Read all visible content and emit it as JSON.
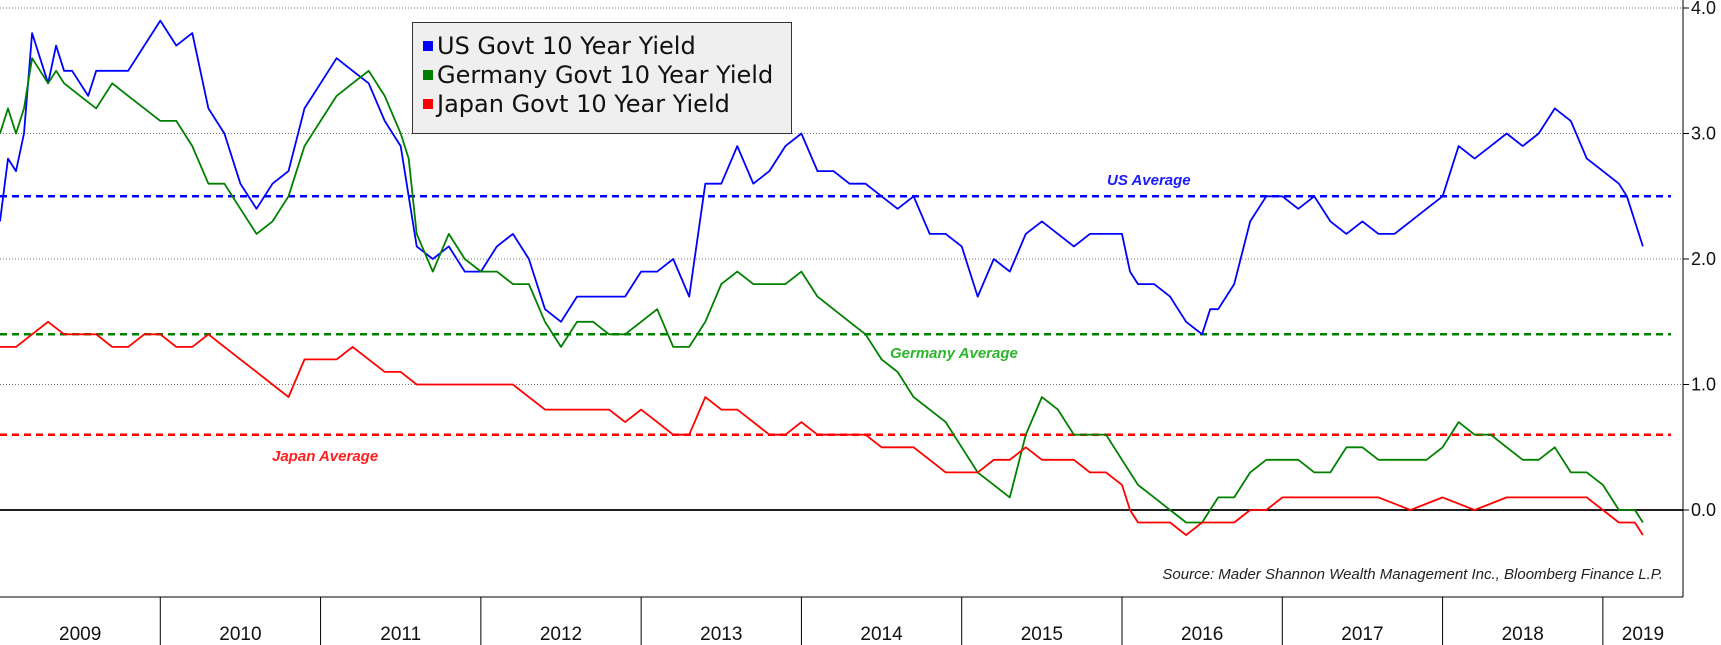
{
  "chart_data": {
    "type": "line",
    "ylim": [
      -0.7,
      4.0
    ],
    "y_ticks": [
      "4.0",
      "3.0",
      "2.0",
      "1.0",
      "0.0"
    ],
    "x_tick_labels": [
      "2009",
      "2010",
      "2011",
      "2012",
      "2013",
      "2014",
      "2015",
      "2016",
      "2017",
      "2018",
      "2019"
    ],
    "grid": true,
    "legend_position": "top-center",
    "series": [
      {
        "name": "US Govt 10 Year Yield",
        "color": "#0000ff",
        "x": [
          2009.0,
          2009.05,
          2009.1,
          2009.15,
          2009.2,
          2009.3,
          2009.35,
          2009.4,
          2009.45,
          2009.55,
          2009.6,
          2009.7,
          2009.8,
          2009.9,
          2010.0,
          2010.1,
          2010.2,
          2010.3,
          2010.4,
          2010.5,
          2010.6,
          2010.7,
          2010.8,
          2010.9,
          2011.0,
          2011.1,
          2011.2,
          2011.3,
          2011.4,
          2011.5,
          2011.55,
          2011.6,
          2011.7,
          2011.8,
          2011.9,
          2012.0,
          2012.1,
          2012.2,
          2012.3,
          2012.4,
          2012.5,
          2012.6,
          2012.7,
          2012.8,
          2012.9,
          2013.0,
          2013.1,
          2013.2,
          2013.3,
          2013.4,
          2013.5,
          2013.6,
          2013.7,
          2013.8,
          2013.9,
          2014.0,
          2014.1,
          2014.2,
          2014.3,
          2014.4,
          2014.5,
          2014.6,
          2014.7,
          2014.8,
          2014.9,
          2015.0,
          2015.1,
          2015.2,
          2015.3,
          2015.4,
          2015.5,
          2015.6,
          2015.7,
          2015.8,
          2015.9,
          2016.0,
          2016.05,
          2016.1,
          2016.2,
          2016.3,
          2016.4,
          2016.5,
          2016.55,
          2016.6,
          2016.7,
          2016.8,
          2016.9,
          2017.0,
          2017.1,
          2017.2,
          2017.3,
          2017.4,
          2017.5,
          2017.6,
          2017.7,
          2017.8,
          2017.9,
          2018.0,
          2018.1,
          2018.2,
          2018.3,
          2018.4,
          2018.5,
          2018.6,
          2018.7,
          2018.8,
          2018.9,
          2019.0,
          2019.1,
          2019.15,
          2019.2,
          2019.25
        ],
        "y": [
          2.3,
          2.8,
          2.7,
          3.0,
          3.8,
          3.4,
          3.7,
          3.5,
          3.5,
          3.3,
          3.5,
          3.5,
          3.5,
          3.7,
          3.9,
          3.7,
          3.8,
          3.2,
          3.0,
          2.6,
          2.4,
          2.6,
          2.7,
          3.2,
          3.4,
          3.6,
          3.5,
          3.4,
          3.1,
          2.9,
          2.5,
          2.1,
          2.0,
          2.1,
          1.9,
          1.9,
          2.1,
          2.2,
          2.0,
          1.6,
          1.5,
          1.7,
          1.7,
          1.7,
          1.7,
          1.9,
          1.9,
          2.0,
          1.7,
          2.6,
          2.6,
          2.9,
          2.6,
          2.7,
          2.9,
          3.0,
          2.7,
          2.7,
          2.6,
          2.6,
          2.5,
          2.4,
          2.5,
          2.2,
          2.2,
          2.1,
          1.7,
          2.0,
          1.9,
          2.2,
          2.3,
          2.2,
          2.1,
          2.2,
          2.2,
          2.2,
          1.9,
          1.8,
          1.8,
          1.7,
          1.5,
          1.4,
          1.6,
          1.6,
          1.8,
          2.3,
          2.5,
          2.5,
          2.4,
          2.5,
          2.3,
          2.2,
          2.3,
          2.2,
          2.2,
          2.3,
          2.4,
          2.5,
          2.9,
          2.8,
          2.9,
          3.0,
          2.9,
          3.0,
          3.2,
          3.1,
          2.8,
          2.7,
          2.6,
          2.5,
          2.3,
          2.1
        ],
        "average": 2.5,
        "average_label": "US Average"
      },
      {
        "name": "Germany Govt 10 Year Yield",
        "color": "#008000",
        "x": [
          2009.0,
          2009.05,
          2009.1,
          2009.15,
          2009.2,
          2009.3,
          2009.35,
          2009.4,
          2009.5,
          2009.6,
          2009.7,
          2009.8,
          2009.9,
          2010.0,
          2010.1,
          2010.2,
          2010.3,
          2010.4,
          2010.5,
          2010.6,
          2010.7,
          2010.8,
          2010.9,
          2011.0,
          2011.1,
          2011.2,
          2011.3,
          2011.4,
          2011.5,
          2011.55,
          2011.6,
          2011.7,
          2011.8,
          2011.9,
          2012.0,
          2012.1,
          2012.2,
          2012.3,
          2012.4,
          2012.5,
          2012.6,
          2012.7,
          2012.8,
          2012.9,
          2013.0,
          2013.1,
          2013.2,
          2013.3,
          2013.4,
          2013.5,
          2013.6,
          2013.7,
          2013.8,
          2013.9,
          2014.0,
          2014.1,
          2014.2,
          2014.3,
          2014.4,
          2014.5,
          2014.6,
          2014.7,
          2014.8,
          2014.9,
          2015.0,
          2015.1,
          2015.2,
          2015.3,
          2015.4,
          2015.5,
          2015.6,
          2015.7,
          2015.8,
          2015.9,
          2016.0,
          2016.1,
          2016.2,
          2016.3,
          2016.4,
          2016.5,
          2016.6,
          2016.7,
          2016.8,
          2016.9,
          2017.0,
          2017.1,
          2017.2,
          2017.3,
          2017.4,
          2017.5,
          2017.6,
          2017.7,
          2017.8,
          2017.9,
          2018.0,
          2018.1,
          2018.2,
          2018.3,
          2018.4,
          2018.5,
          2018.6,
          2018.7,
          2018.8,
          2018.9,
          2019.0,
          2019.1,
          2019.2,
          2019.25
        ],
        "y": [
          3.0,
          3.2,
          3.0,
          3.2,
          3.6,
          3.4,
          3.5,
          3.4,
          3.3,
          3.2,
          3.4,
          3.3,
          3.2,
          3.1,
          3.1,
          2.9,
          2.6,
          2.6,
          2.4,
          2.2,
          2.3,
          2.5,
          2.9,
          3.1,
          3.3,
          3.4,
          3.5,
          3.3,
          3.0,
          2.8,
          2.2,
          1.9,
          2.2,
          2.0,
          1.9,
          1.9,
          1.8,
          1.8,
          1.5,
          1.3,
          1.5,
          1.5,
          1.4,
          1.4,
          1.5,
          1.6,
          1.3,
          1.3,
          1.5,
          1.8,
          1.9,
          1.8,
          1.8,
          1.8,
          1.9,
          1.7,
          1.6,
          1.5,
          1.4,
          1.2,
          1.1,
          0.9,
          0.8,
          0.7,
          0.5,
          0.3,
          0.2,
          0.1,
          0.6,
          0.9,
          0.8,
          0.6,
          0.6,
          0.6,
          0.4,
          0.2,
          0.1,
          0.0,
          -0.1,
          -0.1,
          0.1,
          0.1,
          0.3,
          0.4,
          0.4,
          0.4,
          0.3,
          0.3,
          0.5,
          0.5,
          0.4,
          0.4,
          0.4,
          0.4,
          0.5,
          0.7,
          0.6,
          0.6,
          0.5,
          0.4,
          0.4,
          0.5,
          0.3,
          0.3,
          0.2,
          0.0,
          0.0,
          -0.1
        ],
        "average": 1.4,
        "average_label": "Germany Average"
      },
      {
        "name": "Japan Govt 10 Year Yield",
        "color": "#ff0000",
        "x": [
          2009.0,
          2009.1,
          2009.2,
          2009.3,
          2009.4,
          2009.5,
          2009.6,
          2009.7,
          2009.8,
          2009.9,
          2010.0,
          2010.1,
          2010.2,
          2010.3,
          2010.4,
          2010.5,
          2010.6,
          2010.7,
          2010.8,
          2010.9,
          2011.0,
          2011.1,
          2011.2,
          2011.3,
          2011.4,
          2011.5,
          2011.6,
          2011.7,
          2011.8,
          2011.9,
          2012.0,
          2012.1,
          2012.2,
          2012.3,
          2012.4,
          2012.5,
          2012.6,
          2012.7,
          2012.8,
          2012.9,
          2013.0,
          2013.1,
          2013.2,
          2013.3,
          2013.4,
          2013.5,
          2013.6,
          2013.7,
          2013.8,
          2013.9,
          2014.0,
          2014.1,
          2014.2,
          2014.3,
          2014.4,
          2014.5,
          2014.6,
          2014.7,
          2014.8,
          2014.9,
          2015.0,
          2015.1,
          2015.2,
          2015.3,
          2015.4,
          2015.5,
          2015.6,
          2015.7,
          2015.8,
          2015.9,
          2016.0,
          2016.05,
          2016.1,
          2016.2,
          2016.3,
          2016.4,
          2016.5,
          2016.6,
          2016.7,
          2016.8,
          2016.9,
          2017.0,
          2017.2,
          2017.4,
          2017.6,
          2017.8,
          2018.0,
          2018.2,
          2018.4,
          2018.5,
          2018.6,
          2018.7,
          2018.8,
          2018.9,
          2019.0,
          2019.1,
          2019.2,
          2019.25
        ],
        "y": [
          1.3,
          1.3,
          1.4,
          1.5,
          1.4,
          1.4,
          1.4,
          1.3,
          1.3,
          1.4,
          1.4,
          1.3,
          1.3,
          1.4,
          1.3,
          1.2,
          1.1,
          1.0,
          0.9,
          1.2,
          1.2,
          1.2,
          1.3,
          1.2,
          1.1,
          1.1,
          1.0,
          1.0,
          1.0,
          1.0,
          1.0,
          1.0,
          1.0,
          0.9,
          0.8,
          0.8,
          0.8,
          0.8,
          0.8,
          0.7,
          0.8,
          0.7,
          0.6,
          0.6,
          0.9,
          0.8,
          0.8,
          0.7,
          0.6,
          0.6,
          0.7,
          0.6,
          0.6,
          0.6,
          0.6,
          0.5,
          0.5,
          0.5,
          0.4,
          0.3,
          0.3,
          0.3,
          0.4,
          0.4,
          0.5,
          0.4,
          0.4,
          0.4,
          0.3,
          0.3,
          0.2,
          0.0,
          -0.1,
          -0.1,
          -0.1,
          -0.2,
          -0.1,
          -0.1,
          -0.1,
          0.0,
          0.0,
          0.1,
          0.1,
          0.1,
          0.1,
          0.0,
          0.1,
          0.0,
          0.1,
          0.1,
          0.1,
          0.1,
          0.1,
          0.1,
          0.0,
          -0.1,
          -0.1,
          -0.2
        ],
        "average": 0.6,
        "average_label": "Japan Average"
      }
    ],
    "annotations": [
      "Source: Mader Shannon Wealth Management Inc., Bloomberg Finance L.P."
    ]
  }
}
